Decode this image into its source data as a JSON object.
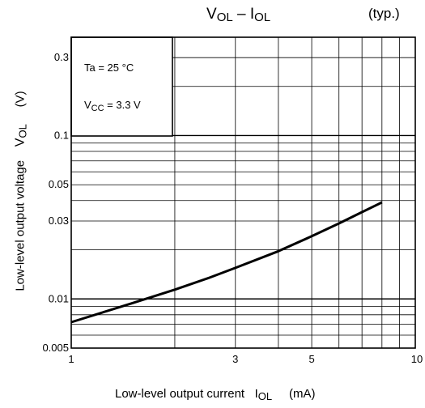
{
  "chart_data": {
    "type": "line",
    "title": {
      "main": "V",
      "main_sub": "OL",
      "sep": " – ",
      "second": "I",
      "second_sub": "OL"
    },
    "typ_label": "(typ.)",
    "conditions": {
      "ta": "Ta = 25 °C",
      "vcc_prefix": "V",
      "vcc_sub": "CC",
      "vcc_value": " = 3.3 V"
    },
    "xaxis": {
      "label": "Low-level output current",
      "symbol": "I",
      "symbol_sub": "OL",
      "unit": "(mA)",
      "scale": "log",
      "range": [
        1,
        10
      ],
      "ticks": [
        {
          "value": 1,
          "label": "1"
        },
        {
          "value": 3,
          "label": "3"
        },
        {
          "value": 5,
          "label": "5"
        },
        {
          "value": 10,
          "label": "10"
        }
      ]
    },
    "yaxis": {
      "label": "Low-level output voltage",
      "symbol": "V",
      "symbol_sub": "OL",
      "unit": "(V)",
      "scale": "log",
      "range": [
        0.005,
        0.4
      ],
      "ticks": [
        {
          "value": 0.005,
          "label": "0.005"
        },
        {
          "value": 0.01,
          "label": "0.01"
        },
        {
          "value": 0.03,
          "label": "0.03"
        },
        {
          "value": 0.05,
          "label": "0.05"
        },
        {
          "value": 0.1,
          "label": "0.1"
        },
        {
          "value": 0.3,
          "label": "0.3"
        }
      ]
    },
    "grid": true,
    "series": [
      {
        "x": [
          1,
          1.5,
          2,
          2.5,
          3,
          4,
          5,
          6,
          7,
          8
        ],
        "y": [
          0.0072,
          0.0094,
          0.0114,
          0.0134,
          0.0155,
          0.0196,
          0.0242,
          0.029,
          0.034,
          0.039
        ]
      }
    ]
  }
}
